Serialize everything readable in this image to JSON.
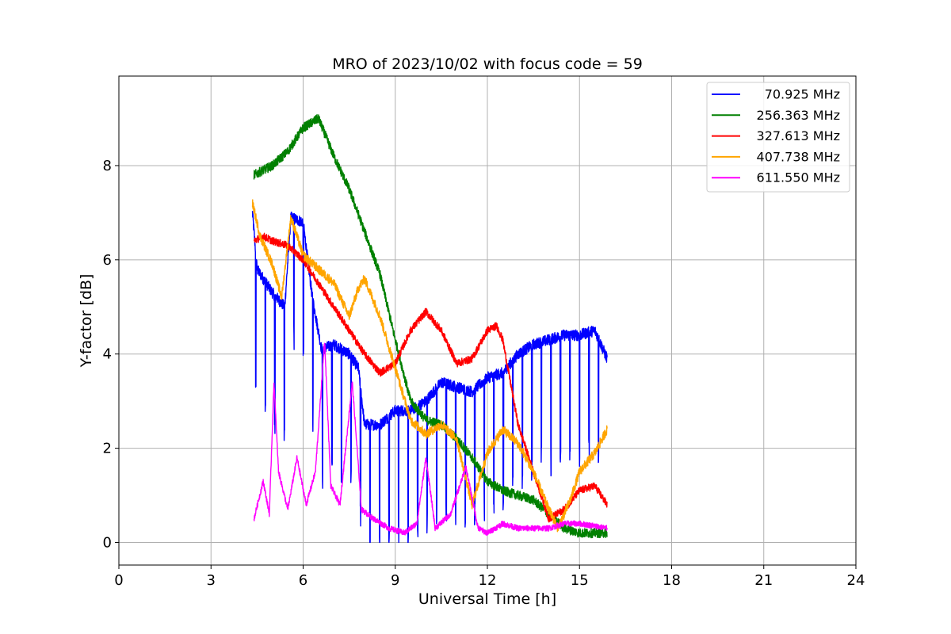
{
  "chart_data": {
    "type": "line",
    "title": "MRO of 2023/10/02 with focus code = 59",
    "xlabel": "Universal Time [h]",
    "ylabel": "Y-factor [dB]",
    "xlim": [
      0,
      24
    ],
    "ylim": [
      -0.48,
      9.9
    ],
    "xticks": [
      0,
      3,
      6,
      9,
      12,
      15,
      18,
      21,
      24
    ],
    "yticks": [
      0,
      2,
      4,
      6,
      8
    ],
    "grid": true,
    "legend_position": "top-right",
    "series": [
      {
        "name": "70.925 MHz",
        "color": "#0000ff",
        "noise": 0.12,
        "dips": {
          "start": 4.45,
          "period": 0.31,
          "end": 15.9,
          "depth": 2.6
        },
        "points": [
          [
            4.35,
            7.0
          ],
          [
            4.5,
            5.8
          ],
          [
            5.0,
            5.3
          ],
          [
            5.4,
            5.0
          ],
          [
            5.6,
            6.9
          ],
          [
            6.0,
            6.8
          ],
          [
            6.3,
            5.2
          ],
          [
            6.6,
            4.1
          ],
          [
            7.0,
            4.2
          ],
          [
            7.5,
            4.0
          ],
          [
            7.8,
            3.7
          ],
          [
            8.0,
            2.5
          ],
          [
            8.5,
            2.5
          ],
          [
            9.0,
            2.8
          ],
          [
            9.5,
            2.8
          ],
          [
            10.0,
            3.0
          ],
          [
            10.5,
            3.4
          ],
          [
            11.0,
            3.3
          ],
          [
            11.5,
            3.2
          ],
          [
            12.0,
            3.5
          ],
          [
            12.5,
            3.6
          ],
          [
            13.0,
            4.0
          ],
          [
            13.5,
            4.2
          ],
          [
            14.0,
            4.3
          ],
          [
            14.5,
            4.4
          ],
          [
            15.0,
            4.4
          ],
          [
            15.5,
            4.5
          ],
          [
            15.9,
            3.9
          ]
        ]
      },
      {
        "name": "256.363 MHz",
        "color": "#008000",
        "noise": 0.1,
        "points": [
          [
            4.4,
            7.8
          ],
          [
            5.0,
            8.0
          ],
          [
            5.5,
            8.3
          ],
          [
            6.0,
            8.8
          ],
          [
            6.5,
            9.0
          ],
          [
            7.0,
            8.2
          ],
          [
            7.5,
            7.5
          ],
          [
            8.0,
            6.6
          ],
          [
            8.5,
            5.7
          ],
          [
            9.0,
            4.3
          ],
          [
            9.5,
            3.0
          ],
          [
            10.0,
            2.6
          ],
          [
            10.5,
            2.5
          ],
          [
            11.0,
            2.2
          ],
          [
            11.5,
            1.8
          ],
          [
            12.0,
            1.3
          ],
          [
            12.5,
            1.1
          ],
          [
            13.0,
            1.0
          ],
          [
            13.5,
            0.9
          ],
          [
            14.0,
            0.6
          ],
          [
            14.5,
            0.3
          ],
          [
            15.0,
            0.2
          ],
          [
            15.5,
            0.2
          ],
          [
            15.9,
            0.2
          ]
        ]
      },
      {
        "name": "327.613 MHz",
        "color": "#ff0000",
        "noise": 0.08,
        "points": [
          [
            4.4,
            6.4
          ],
          [
            4.7,
            6.5
          ],
          [
            5.0,
            6.4
          ],
          [
            5.5,
            6.3
          ],
          [
            6.0,
            6.0
          ],
          [
            6.5,
            5.5
          ],
          [
            7.0,
            5.0
          ],
          [
            7.5,
            4.5
          ],
          [
            8.0,
            4.0
          ],
          [
            8.5,
            3.6
          ],
          [
            9.0,
            3.8
          ],
          [
            9.5,
            4.5
          ],
          [
            10.0,
            4.9
          ],
          [
            10.5,
            4.5
          ],
          [
            11.0,
            3.8
          ],
          [
            11.5,
            3.9
          ],
          [
            12.0,
            4.5
          ],
          [
            12.3,
            4.6
          ],
          [
            12.5,
            4.3
          ],
          [
            13.0,
            2.5
          ],
          [
            13.5,
            1.5
          ],
          [
            14.0,
            0.5
          ],
          [
            14.5,
            0.7
          ],
          [
            15.0,
            1.1
          ],
          [
            15.5,
            1.2
          ],
          [
            15.9,
            0.8
          ]
        ]
      },
      {
        "name": "407.738 MHz",
        "color": "#ffa500",
        "noise": 0.1,
        "points": [
          [
            4.35,
            7.2
          ],
          [
            4.6,
            6.5
          ],
          [
            5.0,
            5.9
          ],
          [
            5.3,
            5.2
          ],
          [
            5.6,
            6.9
          ],
          [
            6.0,
            6.1
          ],
          [
            6.5,
            5.8
          ],
          [
            7.0,
            5.5
          ],
          [
            7.5,
            4.8
          ],
          [
            7.8,
            5.4
          ],
          [
            8.0,
            5.6
          ],
          [
            8.5,
            4.8
          ],
          [
            9.0,
            3.7
          ],
          [
            9.5,
            2.6
          ],
          [
            10.0,
            2.3
          ],
          [
            10.5,
            2.5
          ],
          [
            11.0,
            2.2
          ],
          [
            11.5,
            0.8
          ],
          [
            12.0,
            1.9
          ],
          [
            12.5,
            2.4
          ],
          [
            13.0,
            2.1
          ],
          [
            13.5,
            1.5
          ],
          [
            14.0,
            0.7
          ],
          [
            14.3,
            0.3
          ],
          [
            14.7,
            0.9
          ],
          [
            15.0,
            1.5
          ],
          [
            15.5,
            1.9
          ],
          [
            15.9,
            2.4
          ]
        ]
      },
      {
        "name": "611.550 MHz",
        "color": "#ff00ff",
        "noise": 0.06,
        "points": [
          [
            4.4,
            0.5
          ],
          [
            4.7,
            1.3
          ],
          [
            4.9,
            0.6
          ],
          [
            5.05,
            3.4
          ],
          [
            5.2,
            1.5
          ],
          [
            5.5,
            0.7
          ],
          [
            5.8,
            1.8
          ],
          [
            6.1,
            0.8
          ],
          [
            6.4,
            1.5
          ],
          [
            6.7,
            4.3
          ],
          [
            6.9,
            1.2
          ],
          [
            7.2,
            0.8
          ],
          [
            7.6,
            3.4
          ],
          [
            7.9,
            0.7
          ],
          [
            8.3,
            0.5
          ],
          [
            8.8,
            0.3
          ],
          [
            9.3,
            0.2
          ],
          [
            9.7,
            0.4
          ],
          [
            10.0,
            1.8
          ],
          [
            10.3,
            0.3
          ],
          [
            10.8,
            0.6
          ],
          [
            11.3,
            1.6
          ],
          [
            11.7,
            0.3
          ],
          [
            12.0,
            0.2
          ],
          [
            12.5,
            0.4
          ],
          [
            13.0,
            0.3
          ],
          [
            13.5,
            0.3
          ],
          [
            14.0,
            0.3
          ],
          [
            14.5,
            0.4
          ],
          [
            15.0,
            0.4
          ],
          [
            15.5,
            0.35
          ],
          [
            15.9,
            0.3
          ]
        ]
      }
    ]
  }
}
